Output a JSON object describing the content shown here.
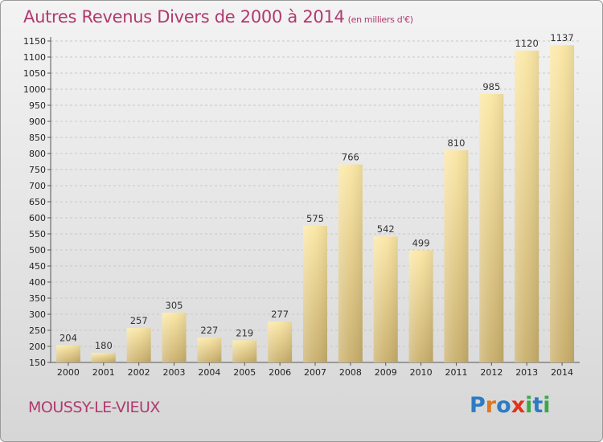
{
  "header": {
    "title": "Autres Revenus Divers de 2000 à 2014",
    "subtitle": "(en milliers d'€)"
  },
  "footer": {
    "commune": "MOUSSY-LE-VIEUX",
    "logo_letters": [
      "P",
      "r",
      "o",
      "x",
      "i",
      "t",
      "i"
    ]
  },
  "chart_data": {
    "type": "bar",
    "title": "Autres Revenus Divers de 2000 à 2014",
    "subtitle": "(en milliers d'€)",
    "categories": [
      "2000",
      "2001",
      "2002",
      "2003",
      "2004",
      "2005",
      "2006",
      "2007",
      "2008",
      "2009",
      "2010",
      "2011",
      "2012",
      "2013",
      "2014"
    ],
    "values": [
      204,
      180,
      257,
      305,
      227,
      219,
      277,
      575,
      766,
      542,
      499,
      810,
      985,
      1120,
      1137
    ],
    "ylim": [
      150,
      1150
    ],
    "yticks": [
      150,
      200,
      250,
      300,
      350,
      400,
      450,
      500,
      550,
      600,
      650,
      700,
      750,
      800,
      850,
      900,
      950,
      1000,
      1050,
      1100,
      1150
    ],
    "grid": true,
    "bar_color": "#f2d890",
    "colors": {
      "title": "#b03a6e",
      "bar_top": "#fbe6a0",
      "bar_bottom": "#c8ae6a"
    }
  }
}
